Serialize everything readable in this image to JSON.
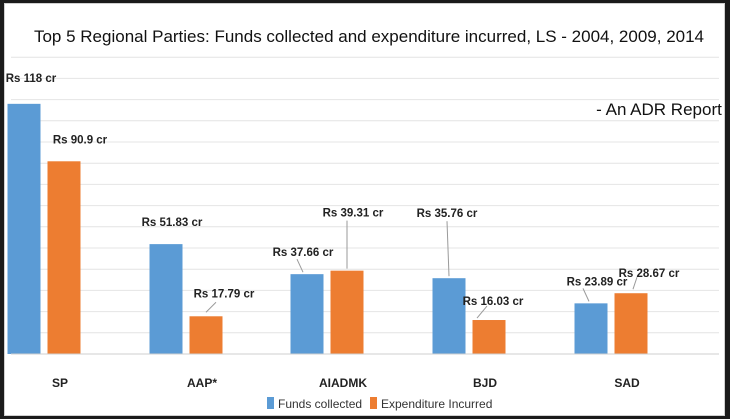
{
  "chart_data": {
    "type": "bar",
    "title": "Top 5 Regional Parties: Funds collected and expenditure incurred, LS - 2004, 2009, 2014",
    "annotation": "- An ADR Report",
    "categories": [
      "SP",
      "AAP*",
      "AIADMK",
      "BJD",
      "SAD"
    ],
    "series": [
      {
        "name": "Funds collected",
        "color": "#5b9bd5",
        "values": [
          118,
          51.83,
          37.66,
          35.76,
          23.89
        ],
        "labels": [
          "Rs 118 cr",
          "Rs 51.83 cr",
          "Rs 37.66 cr",
          "Rs 35.76 cr",
          "Rs 23.89 cr"
        ]
      },
      {
        "name": "Expenditure Incurred",
        "color": "#ed7d31",
        "values": [
          90.9,
          17.79,
          39.31,
          16.03,
          28.67
        ],
        "labels": [
          "Rs 90.9 cr",
          "Rs 17.79 cr",
          "Rs 39.31 cr",
          "Rs 16.03 cr",
          "Rs 28.67 cr"
        ]
      }
    ],
    "xlabel": "",
    "ylabel": "",
    "ylim": [
      0,
      130
    ],
    "grid": true,
    "legend_position": "bottom"
  }
}
